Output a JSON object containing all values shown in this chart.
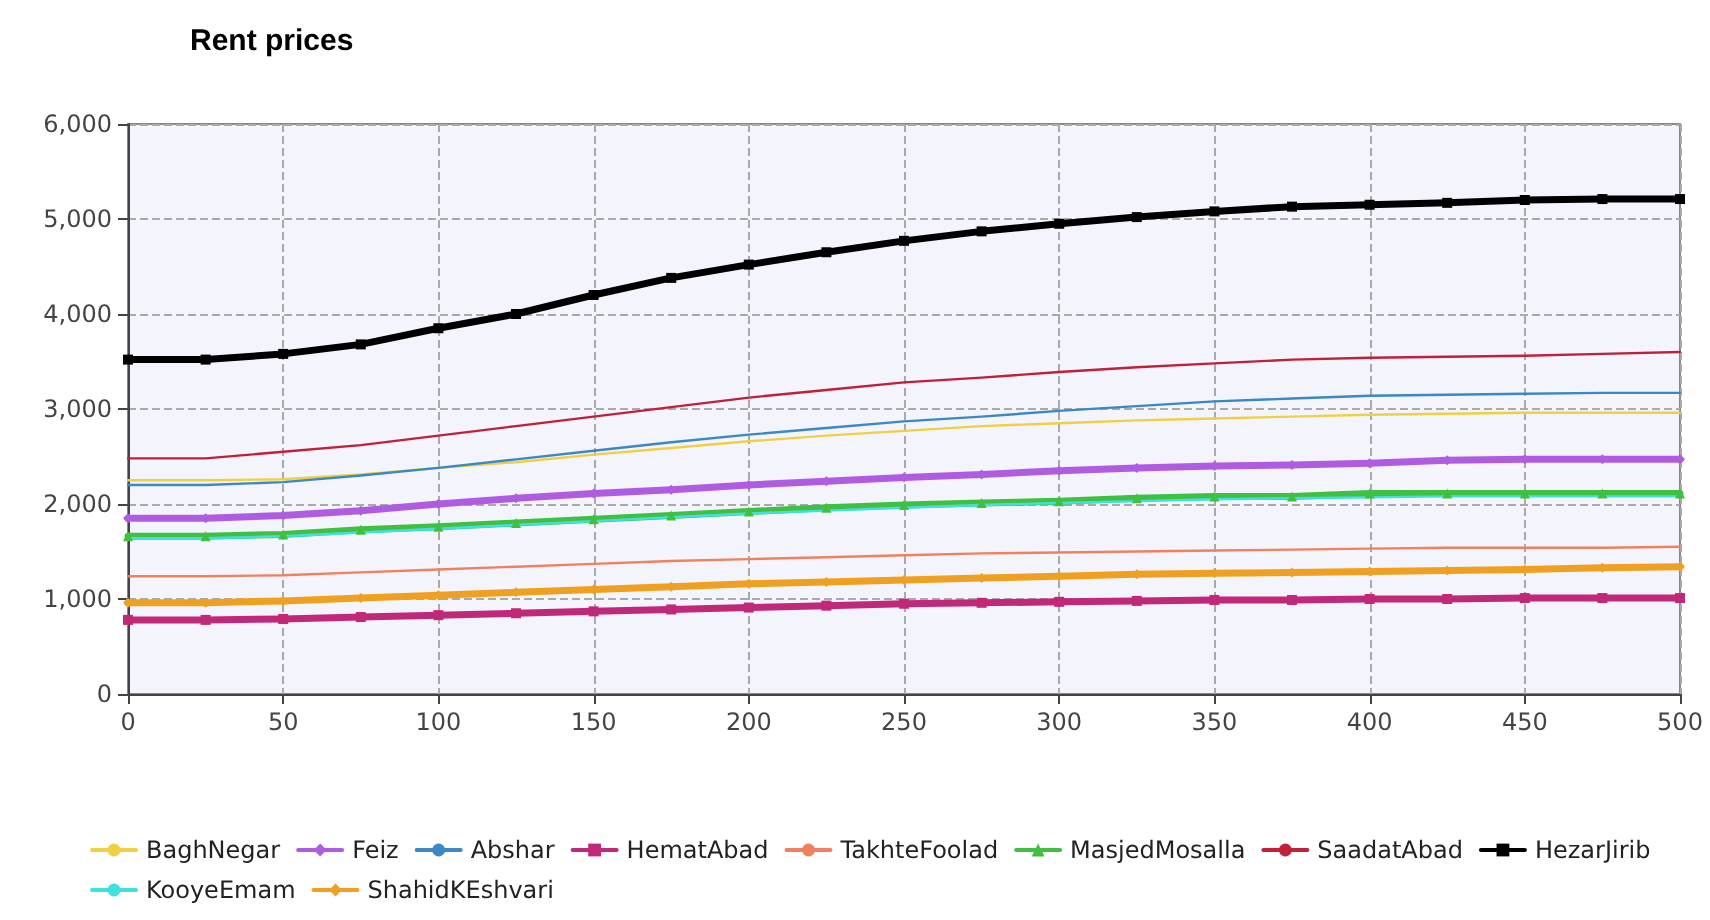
{
  "chart_data": {
    "type": "line",
    "title": "Rent prices",
    "x": [
      0,
      25,
      50,
      75,
      100,
      125,
      150,
      175,
      200,
      225,
      250,
      275,
      300,
      325,
      350,
      375,
      400,
      425,
      450,
      475,
      500
    ],
    "xlim": [
      0,
      500
    ],
    "xticks": [
      0,
      50,
      100,
      150,
      200,
      250,
      300,
      350,
      400,
      450,
      500
    ],
    "ylim": [
      0,
      6000
    ],
    "yticks": [
      0,
      {
        "value": 1000,
        "label": "1,000"
      },
      {
        "value": 2000,
        "label": "2,000"
      },
      {
        "value": 3000,
        "label": "3,000"
      },
      {
        "value": 4000,
        "label": "4,000"
      },
      {
        "value": 5000,
        "label": "5,000"
      },
      {
        "value": 6000,
        "label": "6,000"
      }
    ],
    "grid": true,
    "legend": "bottom",
    "marker": "none",
    "series": [
      {
        "name": "BaghNegar",
        "color": "#f0d040",
        "values": [
          2250,
          2250,
          2260,
          2310,
          2380,
          2440,
          2520,
          2590,
          2660,
          2720,
          2770,
          2820,
          2850,
          2880,
          2900,
          2920,
          2940,
          2950,
          2960,
          2960,
          2960
        ]
      },
      {
        "name": "Feiz",
        "color": "#b05ce0",
        "marker": "diamond",
        "values": [
          1850,
          1850,
          1880,
          1930,
          2000,
          2060,
          2110,
          2150,
          2200,
          2240,
          2280,
          2310,
          2350,
          2380,
          2400,
          2410,
          2430,
          2460,
          2470,
          2470,
          2470
        ]
      },
      {
        "name": "Abshar",
        "color": "#3b88c4",
        "values": [
          2200,
          2200,
          2230,
          2300,
          2380,
          2470,
          2560,
          2650,
          2730,
          2800,
          2870,
          2920,
          2980,
          3030,
          3080,
          3110,
          3140,
          3150,
          3160,
          3170,
          3170
        ]
      },
      {
        "name": "HematAbad",
        "color": "#c0287a",
        "marker": "square",
        "values": [
          780,
          780,
          790,
          810,
          830,
          850,
          870,
          890,
          910,
          930,
          950,
          960,
          970,
          980,
          990,
          990,
          1000,
          1000,
          1010,
          1010,
          1010
        ]
      },
      {
        "name": "TakhteFoolad",
        "color": "#f08060",
        "values": [
          1240,
          1240,
          1250,
          1280,
          1310,
          1340,
          1370,
          1400,
          1420,
          1440,
          1460,
          1480,
          1490,
          1500,
          1510,
          1520,
          1530,
          1540,
          1540,
          1540,
          1550
        ]
      },
      {
        "name": "MasjedMosalla",
        "color": "#40c040",
        "marker": "triangle",
        "values": [
          1660,
          1660,
          1680,
          1730,
          1760,
          1800,
          1840,
          1880,
          1920,
          1960,
          1990,
          2010,
          2030,
          2060,
          2080,
          2080,
          2110,
          2110,
          2110,
          2110,
          2110
        ]
      },
      {
        "name": "SaadatAbad",
        "color": "#c0203a",
        "values": [
          2480,
          2480,
          2550,
          2620,
          2720,
          2820,
          2920,
          3020,
          3120,
          3200,
          3280,
          3330,
          3390,
          3440,
          3480,
          3520,
          3540,
          3550,
          3560,
          3580,
          3600
        ]
      },
      {
        "name": "HezarJirib",
        "color": "#000000",
        "marker": "square",
        "values": [
          3520,
          3520,
          3580,
          3680,
          3850,
          4000,
          4200,
          4380,
          4520,
          4650,
          4770,
          4870,
          4950,
          5020,
          5080,
          5130,
          5150,
          5170,
          5200,
          5210,
          5210
        ]
      },
      {
        "name": "KooyeEmam",
        "color": "#40e0e0",
        "values": [
          1640,
          1640,
          1660,
          1700,
          1740,
          1780,
          1820,
          1860,
          1900,
          1930,
          1960,
          1990,
          2010,
          2030,
          2050,
          2060,
          2070,
          2080,
          2080,
          2080,
          2080
        ]
      },
      {
        "name": "ShahidKEshvari",
        "color": "#f0a020",
        "marker": "diamond",
        "values": [
          960,
          960,
          980,
          1010,
          1040,
          1070,
          1100,
          1130,
          1160,
          1180,
          1200,
          1220,
          1240,
          1260,
          1270,
          1280,
          1290,
          1300,
          1310,
          1330,
          1340
        ]
      }
    ]
  }
}
